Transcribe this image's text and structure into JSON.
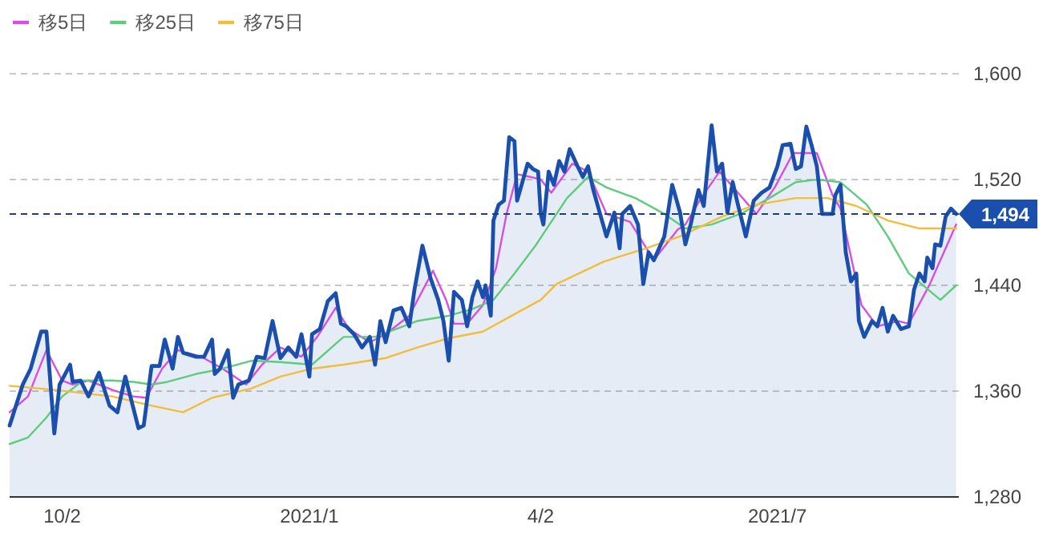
{
  "chart_data": {
    "type": "line",
    "xlim": [
      "2020-09-12",
      "2021-09-08"
    ],
    "ylim": [
      1280,
      1600
    ],
    "xticks": [
      {
        "value": "2020-10-02",
        "label": "10/2"
      },
      {
        "value": "2021-01-04",
        "label": "2021/1"
      },
      {
        "value": "2021-04-02",
        "label": "4/2"
      },
      {
        "value": "2021-07-01",
        "label": "2021/7"
      }
    ],
    "yticks": [
      {
        "value": 1280,
        "label": "1,280"
      },
      {
        "value": 1360,
        "label": "1,360"
      },
      {
        "value": 1440,
        "label": "1,440"
      },
      {
        "value": 1520,
        "label": "1,520"
      },
      {
        "value": 1600,
        "label": "1,600"
      }
    ],
    "grid": "y",
    "legend": "top left",
    "ref_lines": [
      {
        "axis": "y",
        "value": 1494,
        "label": "1,494",
        "color": "#1d3f7a",
        "line_style": "dashed"
      }
    ],
    "series": [
      {
        "type": "area",
        "color": "#1a4fae",
        "x": [
          "2020-09-12",
          "2020-09-17",
          "2020-09-20",
          "2020-09-24",
          "2020-09-26",
          "2020-09-29",
          "2020-10-01",
          "2020-10-05",
          "2020-10-06",
          "2020-10-09",
          "2020-10-12",
          "2020-10-16",
          "2020-10-20",
          "2020-10-23",
          "2020-10-26",
          "2020-10-31",
          "2020-11-02",
          "2020-11-05",
          "2020-11-08",
          "2020-11-10",
          "2020-11-13",
          "2020-11-15",
          "2020-11-17",
          "2020-11-22",
          "2020-11-25",
          "2020-11-28",
          "2020-11-29",
          "2020-12-01",
          "2020-12-04",
          "2020-12-06",
          "2020-12-08",
          "2020-12-12",
          "2020-12-15",
          "2020-12-18",
          "2020-12-21",
          "2020-12-24",
          "2020-12-27",
          "2020-12-30",
          "2021-01-01",
          "2021-01-04",
          "2021-01-05",
          "2021-01-08",
          "2021-01-11",
          "2021-01-14",
          "2021-01-16",
          "2021-01-18",
          "2021-01-21",
          "2021-01-24",
          "2021-01-27",
          "2021-01-29",
          "2021-01-31",
          "2021-02-02",
          "2021-02-05",
          "2021-02-08",
          "2021-02-11",
          "2021-02-13",
          "2021-02-16",
          "2021-02-19",
          "2021-02-22",
          "2021-02-24",
          "2021-02-26",
          "2021-02-28",
          "2021-03-03",
          "2021-03-05",
          "2021-03-07",
          "2021-03-09",
          "2021-03-11",
          "2021-03-12",
          "2021-03-14",
          "2021-03-15",
          "2021-03-17",
          "2021-03-19",
          "2021-03-21",
          "2021-03-23",
          "2021-03-24",
          "2021-03-26",
          "2021-03-28",
          "2021-03-30",
          "2021-04-01",
          "2021-04-02",
          "2021-04-03",
          "2021-04-05",
          "2021-04-07",
          "2021-04-09",
          "2021-04-11",
          "2021-04-13",
          "2021-04-16",
          "2021-04-18",
          "2021-04-20",
          "2021-04-22",
          "2021-04-24",
          "2021-04-27",
          "2021-04-30",
          "2021-05-02",
          "2021-05-03",
          "2021-05-06",
          "2021-05-09",
          "2021-05-11",
          "2021-05-13",
          "2021-05-15",
          "2021-05-19",
          "2021-05-22",
          "2021-05-25",
          "2021-05-27",
          "2021-05-29",
          "2021-06-01",
          "2021-06-03",
          "2021-06-06",
          "2021-06-08",
          "2021-06-10",
          "2021-06-12",
          "2021-06-14",
          "2021-06-16",
          "2021-06-19",
          "2021-06-22",
          "2021-06-25",
          "2021-06-28",
          "2021-07-01",
          "2021-07-03",
          "2021-07-06",
          "2021-07-08",
          "2021-07-10",
          "2021-07-12",
          "2021-07-14",
          "2021-07-16",
          "2021-07-18",
          "2021-07-22",
          "2021-07-23",
          "2021-07-25",
          "2021-07-27",
          "2021-07-29",
          "2021-07-31",
          "2021-08-01",
          "2021-08-03",
          "2021-08-06",
          "2021-08-08",
          "2021-08-10",
          "2021-08-12",
          "2021-08-14",
          "2021-08-17",
          "2021-08-20",
          "2021-08-22",
          "2021-08-24",
          "2021-08-26",
          "2021-08-27",
          "2021-08-29",
          "2021-08-30",
          "2021-09-01",
          "2021-09-03",
          "2021-09-05",
          "2021-09-07"
        ],
        "values": [
          1334,
          1365,
          1377,
          1405,
          1405,
          1328,
          1365,
          1380,
          1367,
          1368,
          1356,
          1374,
          1349,
          1344,
          1371,
          1332,
          1334,
          1379,
          1379,
          1399,
          1377,
          1401,
          1389,
          1386,
          1386,
          1399,
          1373,
          1377,
          1391,
          1355,
          1365,
          1368,
          1386,
          1385,
          1413,
          1385,
          1393,
          1386,
          1403,
          1371,
          1403,
          1407,
          1428,
          1434,
          1411,
          1409,
          1403,
          1393,
          1401,
          1380,
          1413,
          1397,
          1421,
          1423,
          1409,
          1437,
          1470,
          1446,
          1429,
          1413,
          1383,
          1435,
          1429,
          1409,
          1431,
          1443,
          1431,
          1440,
          1417,
          1489,
          1501,
          1504,
          1552,
          1549,
          1504,
          1518,
          1532,
          1528,
          1526,
          1494,
          1486,
          1526,
          1516,
          1534,
          1526,
          1543,
          1530,
          1522,
          1530,
          1512,
          1498,
          1477,
          1495,
          1468,
          1494,
          1500,
          1486,
          1441,
          1465,
          1459,
          1477,
          1516,
          1495,
          1471,
          1486,
          1512,
          1500,
          1561,
          1526,
          1532,
          1495,
          1518,
          1501,
          1477,
          1504,
          1510,
          1514,
          1530,
          1546,
          1547,
          1528,
          1530,
          1560,
          1546,
          1530,
          1494,
          1494,
          1508,
          1516,
          1465,
          1443,
          1449,
          1413,
          1401,
          1413,
          1409,
          1423,
          1405,
          1417,
          1407,
          1409,
          1437,
          1449,
          1443,
          1461,
          1453,
          1471,
          1470,
          1492,
          1498,
          1494
        ]
      },
      {
        "name": "移5日",
        "color": "#d64fe2",
        "x": [
          "2020-09-12",
          "2020-09-19",
          "2020-09-26",
          "2020-10-02",
          "2020-10-06",
          "2020-10-12",
          "2020-10-21",
          "2020-10-29",
          "2020-11-03",
          "2020-11-09",
          "2020-11-15",
          "2020-11-24",
          "2020-12-02",
          "2020-12-11",
          "2020-12-17",
          "2020-12-24",
          "2021-01-01",
          "2021-01-07",
          "2021-01-14",
          "2021-01-19",
          "2021-01-27",
          "2021-02-02",
          "2021-02-11",
          "2021-02-20",
          "2021-02-25",
          "2021-02-28",
          "2021-03-05",
          "2021-03-11",
          "2021-03-16",
          "2021-03-20",
          "2021-03-24",
          "2021-03-29",
          "2021-04-02",
          "2021-04-06",
          "2021-04-14",
          "2021-04-20",
          "2021-04-27",
          "2021-05-06",
          "2021-05-15",
          "2021-05-24",
          "2021-05-27",
          "2021-06-02",
          "2021-06-09",
          "2021-06-16",
          "2021-06-23",
          "2021-06-30",
          "2021-07-07",
          "2021-07-16",
          "2021-07-22",
          "2021-07-25",
          "2021-08-02",
          "2021-08-08",
          "2021-08-16",
          "2021-08-20",
          "2021-08-28",
          "2021-09-07"
        ],
        "values": [
          1344,
          1356,
          1391,
          1368,
          1365,
          1368,
          1361,
          1356,
          1355,
          1377,
          1391,
          1386,
          1377,
          1365,
          1380,
          1393,
          1386,
          1401,
          1423,
          1407,
          1397,
          1403,
          1417,
          1451,
          1429,
          1411,
          1411,
          1425,
          1453,
          1494,
          1524,
          1522,
          1520,
          1510,
          1532,
          1526,
          1494,
          1488,
          1459,
          1482,
          1486,
          1506,
          1526,
          1510,
          1494,
          1514,
          1540,
          1540,
          1508,
          1498,
          1425,
          1409,
          1413,
          1411,
          1441,
          1486
        ]
      },
      {
        "name": "移25日",
        "color": "#5fcb7c",
        "x": [
          "2020-09-12",
          "2020-09-19",
          "2020-09-26",
          "2020-10-02",
          "2020-10-10",
          "2020-10-21",
          "2020-10-29",
          "2020-11-05",
          "2020-11-11",
          "2020-11-22",
          "2020-12-02",
          "2020-12-13",
          "2020-12-24",
          "2021-01-05",
          "2021-01-17",
          "2021-01-29",
          "2021-02-14",
          "2021-02-26",
          "2021-03-07",
          "2021-03-15",
          "2021-03-23",
          "2021-03-31",
          "2021-04-04",
          "2021-04-12",
          "2021-04-20",
          "2021-04-27",
          "2021-05-08",
          "2021-05-19",
          "2021-05-27",
          "2021-06-06",
          "2021-06-18",
          "2021-06-28",
          "2021-07-08",
          "2021-07-16",
          "2021-07-25",
          "2021-08-04",
          "2021-08-12",
          "2021-08-20",
          "2021-09-01",
          "2021-09-07"
        ],
        "values": [
          1320,
          1325,
          1340,
          1356,
          1368,
          1368,
          1367,
          1365,
          1367,
          1373,
          1377,
          1383,
          1382,
          1380,
          1401,
          1401,
          1413,
          1417,
          1422,
          1429,
          1449,
          1470,
          1482,
          1506,
          1522,
          1514,
          1506,
          1494,
          1483,
          1486,
          1495,
          1506,
          1518,
          1520,
          1518,
          1501,
          1477,
          1449,
          1429,
          1440
        ]
      },
      {
        "name": "移75日",
        "color": "#f2bd3a",
        "x": [
          "2020-09-12",
          "2020-09-29",
          "2020-10-21",
          "2020-11-05",
          "2020-11-17",
          "2020-11-28",
          "2020-12-13",
          "2020-12-24",
          "2021-01-05",
          "2021-01-17",
          "2021-02-02",
          "2021-02-14",
          "2021-02-26",
          "2021-03-11",
          "2021-03-21",
          "2021-04-02",
          "2021-04-08",
          "2021-04-26",
          "2021-05-12",
          "2021-05-25",
          "2021-06-10",
          "2021-06-23",
          "2021-07-08",
          "2021-07-20",
          "2021-07-31",
          "2021-08-12",
          "2021-08-24",
          "2021-09-07"
        ],
        "values": [
          1364,
          1361,
          1356,
          1349,
          1344,
          1355,
          1362,
          1371,
          1377,
          1380,
          1385,
          1393,
          1400,
          1405,
          1416,
          1429,
          1441,
          1458,
          1468,
          1477,
          1492,
          1501,
          1506,
          1506,
          1500,
          1489,
          1483,
          1483
        ]
      }
    ]
  }
}
